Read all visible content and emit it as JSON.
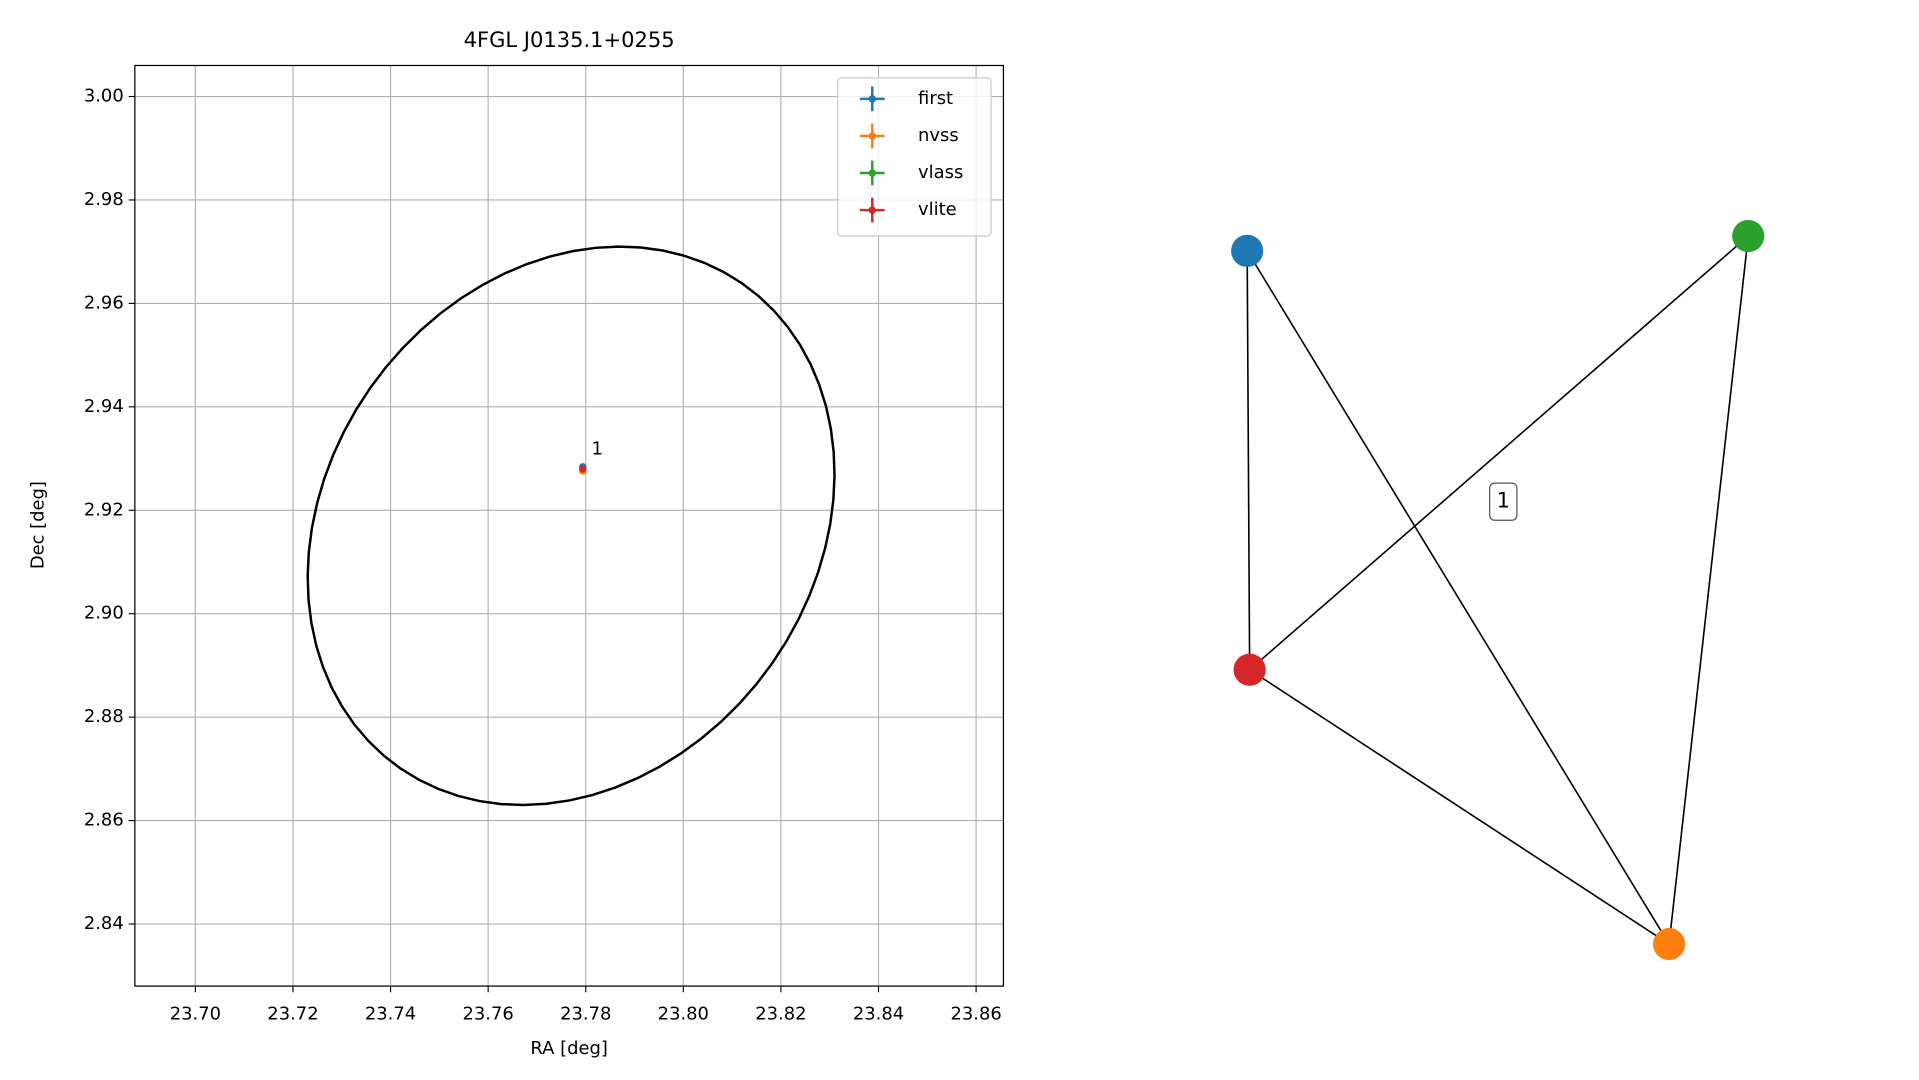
{
  "chart_data": [
    {
      "type": "scatter",
      "title": "4FGL J0135.1+0255",
      "xlabel": "RA [deg]",
      "ylabel": "Dec [deg]",
      "xlim": [
        23.6876,
        23.8656
      ],
      "ylim": [
        2.828,
        3.006
      ],
      "xticks": [
        {
          "value": 23.7,
          "label": "23.70"
        },
        23.72,
        23.74,
        23.76,
        23.78,
        {
          "value": 23.8,
          "label": "23.80"
        },
        23.82,
        23.84,
        23.86
      ],
      "yticks": [
        2.84,
        2.86,
        2.88,
        {
          "value": 2.9,
          "label": "2.90"
        },
        2.92,
        2.94,
        2.96,
        2.98,
        {
          "value": 3,
          "label": "3.00"
        }
      ],
      "grid": true,
      "legend": "upper right",
      "series": [
        {
          "name": "first",
          "color": "#1f77b4",
          "x": [
            23.7794
          ],
          "values": [
            2.9284
          ]
        },
        {
          "name": "nvss",
          "color": "#ff7f0e",
          "x": [
            23.7794
          ],
          "values": [
            2.9276
          ]
        },
        {
          "name": "vlass",
          "color": "#2ca02c",
          "x": [
            23.7794
          ],
          "values": [
            2.928
          ]
        },
        {
          "name": "vlite",
          "color": "#d62728",
          "x": [
            23.7794
          ],
          "values": [
            2.928
          ]
        }
      ],
      "annotation": "1",
      "ellipse": {
        "center": [
          23.777,
          2.917
        ],
        "semi_major": 0.0588,
        "semi_minor": 0.0487,
        "angle": 45,
        "color": "#000000"
      }
    },
    {
      "type": "network",
      "nodes": [
        {
          "color": "#1f77b4"
        },
        {
          "color": "#ff7f0e"
        },
        {
          "color": "#2ca02c"
        },
        {
          "color": "#d62728"
        }
      ],
      "edges": [
        [
          0,
          3
        ],
        [
          0,
          1
        ],
        [
          2,
          3
        ],
        [
          2,
          1
        ],
        [
          3,
          1
        ]
      ],
      "edge_color": "#000000",
      "label": "1"
    }
  ]
}
